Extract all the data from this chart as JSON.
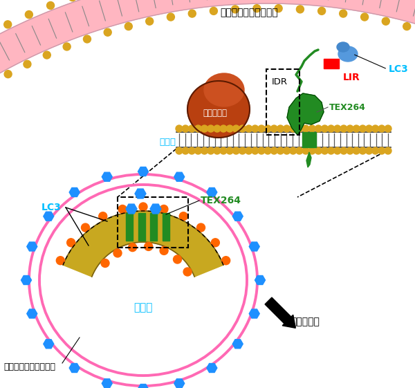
{
  "autophagosome_membrane_label_top": "オートファゴソーム膜",
  "autophagosome_membrane_label_bottom": "オートファゴソーム膜",
  "er_label": "小胞体",
  "er_label2": "小胞体",
  "ribosome_label": "リボソーム",
  "idr_label": "IDR",
  "lir_label": "LIR",
  "tex264_label1": "TEX264",
  "tex264_label2": "TEX264",
  "lc3_label1": "LC3",
  "lc3_label2": "LC3",
  "degradation_label": "小胞体分解",
  "pink_color": "#FF69B4",
  "gold_color": "#DAA520",
  "ribosome_color": "#B94010",
  "green_color": "#228B22",
  "red_color": "#FF0000",
  "blue_color": "#1E90FF",
  "cyan_color": "#00BFFF",
  "orange_color": "#FF6600",
  "black": "#000000",
  "white": "#FFFFFF",
  "bg": "#FFFFFF"
}
